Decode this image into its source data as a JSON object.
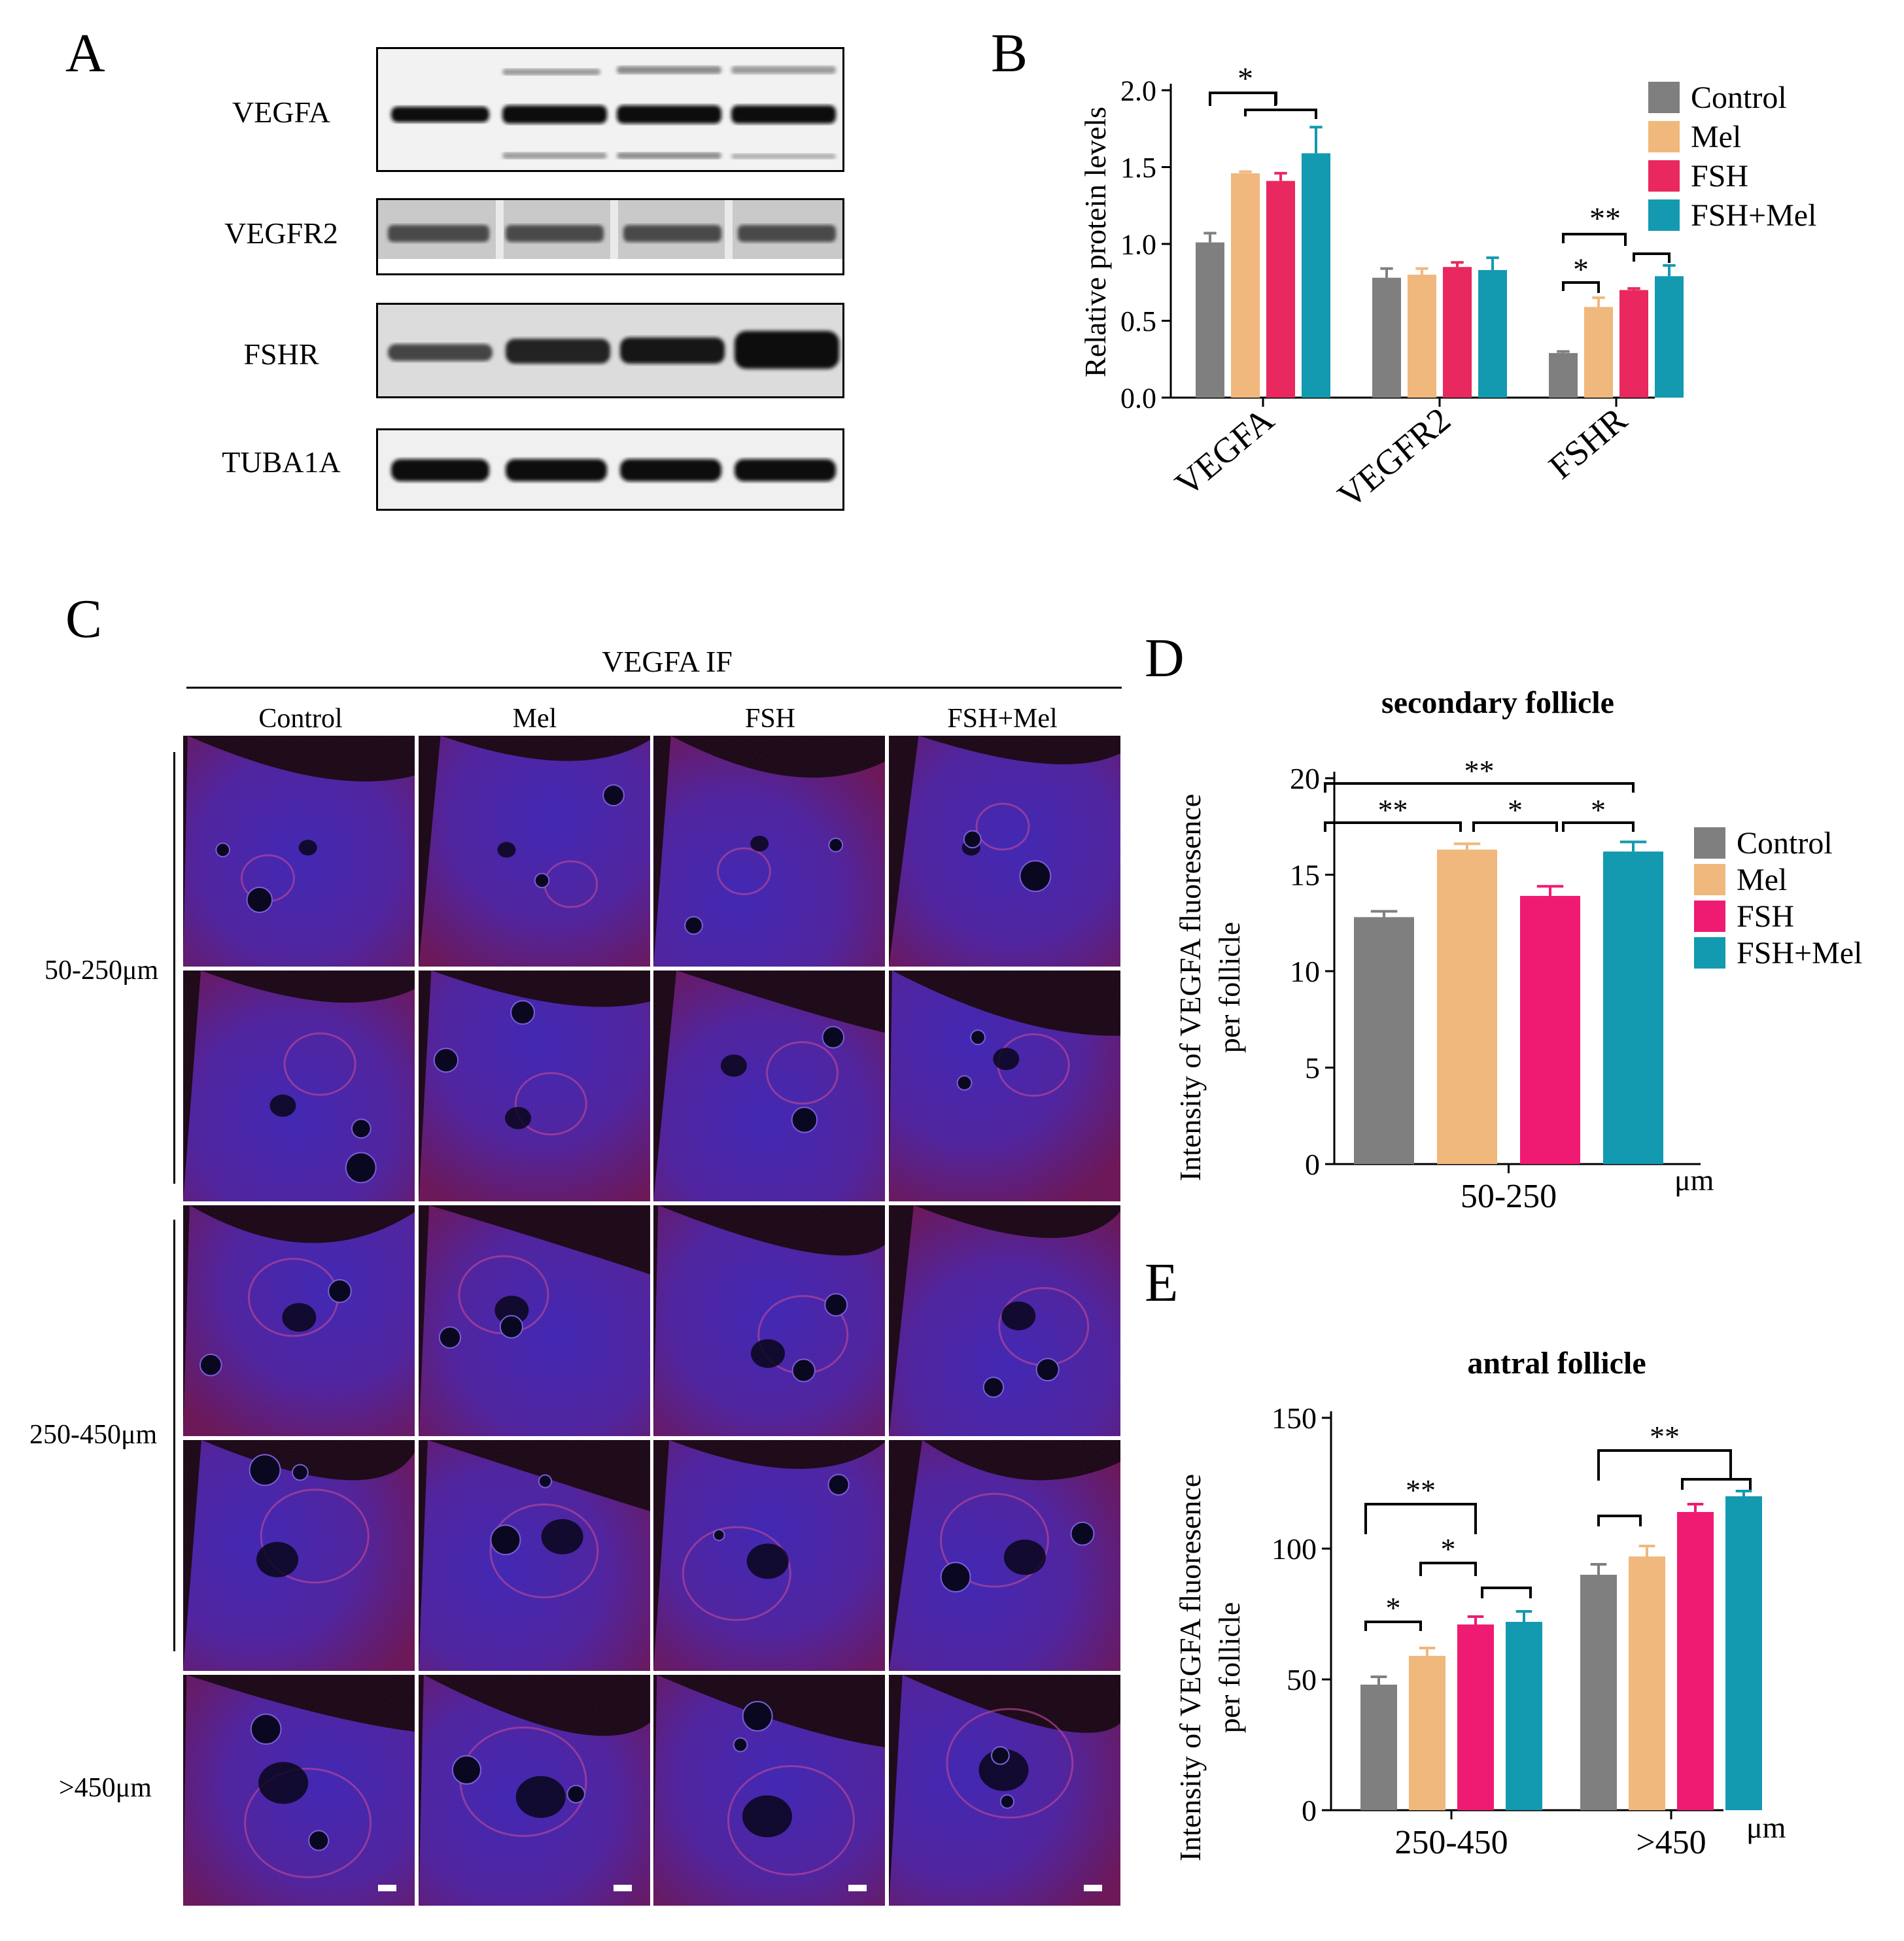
{
  "panels": {
    "A": "A",
    "B": "B",
    "C": "C",
    "D": "D",
    "E": "E"
  },
  "blots": {
    "labels": [
      "VEGFA",
      "VEGFR2",
      "FSHR",
      "TUBA1A"
    ]
  },
  "if_panel": {
    "title": "VEGFA  IF",
    "columns": [
      "Control",
      "Mel",
      "FSH",
      "FSH+Mel"
    ],
    "row_groups": [
      "50-250μm",
      "250-450μm",
      ">450μm"
    ]
  },
  "colors": {
    "Control": "#7f7f7f",
    "Mel": "#f0b87c",
    "FSH": "#ef1b72",
    "FSH+Mel": "#1399b0",
    "FSH_B": "#e8285e"
  },
  "chart_data": [
    {
      "type": "bar",
      "panel": "B",
      "ylabel": "Relative protein levels",
      "categories": [
        "VEGFA",
        "VEGFR2",
        "FSHR"
      ],
      "series": [
        {
          "name": "Control",
          "values": [
            1.01,
            0.78,
            0.29
          ],
          "errors": [
            0.06,
            0.06,
            0.01
          ]
        },
        {
          "name": "Mel",
          "values": [
            1.46,
            0.8,
            0.59
          ],
          "errors": [
            0.01,
            0.04,
            0.06
          ]
        },
        {
          "name": "FSH",
          "values": [
            1.41,
            0.85,
            0.7
          ],
          "errors": [
            0.05,
            0.03,
            0.01
          ]
        },
        {
          "name": "FSH+Mel",
          "values": [
            1.59,
            0.83,
            0.79
          ],
          "errors": [
            0.17,
            0.08,
            0.07
          ]
        }
      ],
      "yticks": [
        "0.0",
        "0.5",
        "1.0",
        "1.5",
        "2.0"
      ],
      "ylim": [
        0,
        2.0
      ],
      "legend": "top-right",
      "annotations": [
        {
          "text": "*",
          "category": 0,
          "from": 0,
          "to": [
            1,
            2,
            3
          ]
        },
        {
          "text": "**",
          "category": 2,
          "from": 0,
          "to": [
            2,
            3
          ]
        },
        {
          "text": "*",
          "category": 2,
          "from": 0,
          "to": [
            1
          ]
        }
      ]
    },
    {
      "type": "bar",
      "panel": "D",
      "title": "secondary follicle",
      "ylabel": "Intensity of VEGFA fluoresence per follicle",
      "xunit": "μm",
      "categories": [
        "50-250"
      ],
      "series": [
        {
          "name": "Control",
          "values": [
            12.8
          ],
          "errors": [
            0.3
          ]
        },
        {
          "name": "Mel",
          "values": [
            16.3
          ],
          "errors": [
            0.3
          ]
        },
        {
          "name": "FSH",
          "values": [
            13.9
          ],
          "errors": [
            0.5
          ]
        },
        {
          "name": "FSH+Mel",
          "values": [
            16.2
          ],
          "errors": [
            0.5
          ]
        }
      ],
      "yticks": [
        "0",
        "5",
        "10",
        "15",
        "20"
      ],
      "ylim": [
        0,
        20
      ],
      "legend": "right",
      "annotations": [
        {
          "text": "**",
          "from": 0,
          "to": [
            3
          ]
        },
        {
          "text": "**",
          "from": 0,
          "to": [
            1
          ]
        },
        {
          "text": "*",
          "from": 1,
          "to": [
            2
          ]
        },
        {
          "text": "*",
          "from": 2,
          "to": [
            3
          ]
        }
      ]
    },
    {
      "type": "bar",
      "panel": "E",
      "title": "antral follicle",
      "ylabel": "Intensity of VEGFA fluoresence per follicle",
      "xunit": "μm",
      "categories": [
        "250-450",
        ">450"
      ],
      "series": [
        {
          "name": "Control",
          "values": [
            48,
            90
          ],
          "errors": [
            3,
            4
          ]
        },
        {
          "name": "Mel",
          "values": [
            59,
            97
          ],
          "errors": [
            3,
            4
          ]
        },
        {
          "name": "FSH",
          "values": [
            71,
            114
          ],
          "errors": [
            3,
            3
          ]
        },
        {
          "name": "FSH+Mel",
          "values": [
            72,
            120
          ],
          "errors": [
            4,
            2
          ]
        }
      ],
      "yticks": [
        "0",
        "50",
        "100",
        "150"
      ],
      "ylim": [
        0,
        150
      ],
      "annotations": [
        {
          "text": "**",
          "category": 0,
          "from": 0,
          "to": [
            2
          ]
        },
        {
          "text": "*",
          "category": 0,
          "from": 1,
          "to": [
            2,
            3
          ]
        },
        {
          "text": "*",
          "category": 0,
          "from": 0,
          "to": [
            1
          ]
        },
        {
          "text": "**",
          "category": 1,
          "from": 0,
          "to": [
            3
          ]
        },
        {
          "text": "",
          "category": 1,
          "from": 0,
          "to": [
            1
          ]
        }
      ]
    }
  ]
}
